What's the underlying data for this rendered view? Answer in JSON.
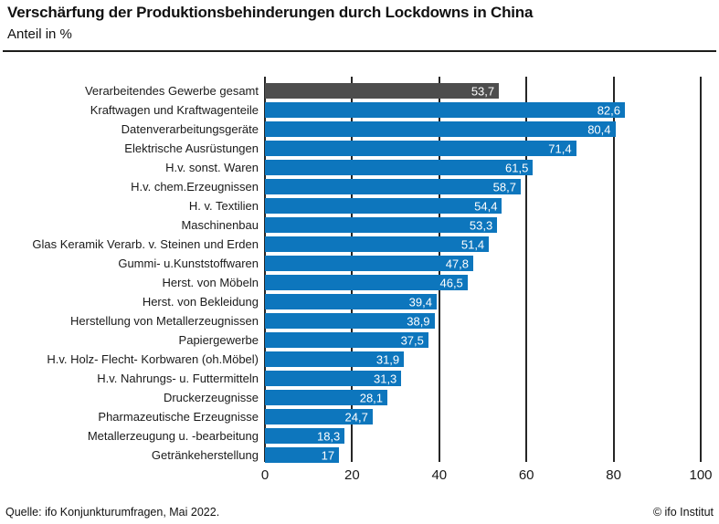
{
  "header": {
    "title": "Verschärfung der Produktionsbehinderungen durch Lockdowns in China",
    "subtitle": "Anteil in %"
  },
  "footer": {
    "source": "Quelle: ifo Konjunkturumfragen, Mai 2022.",
    "copyright": "© ifo Institut"
  },
  "colors": {
    "bar": "#0d76bd",
    "highlight_bar": "#4d4d4d",
    "gridline": "#262626",
    "value_text": "#ffffff"
  },
  "chart_data": {
    "type": "bar",
    "orientation": "horizontal",
    "title": "Verschärfung der Produktionsbehinderungen durch Lockdowns in China",
    "subtitle": "Anteil in %",
    "xlabel": "",
    "ylabel": "",
    "xlim": [
      0,
      100
    ],
    "xticks": [
      0,
      20,
      40,
      60,
      80,
      100
    ],
    "grid": "vertical",
    "legend": "none",
    "highlight_index": 0,
    "categories": [
      "Verarbeitendes Gewerbe gesamt",
      "Kraftwagen und Kraftwagenteile",
      "Datenverarbeitungsgeräte",
      "Elektrische Ausrüstungen",
      "H.v. sonst. Waren",
      "H.v. chem.Erzeugnissen",
      "H. v. Textilien",
      "Maschinenbau",
      "Glas  Keramik  Verarb. v. Steinen und Erden",
      "Gummi- u.Kunststoffwaren",
      "Herst. von Möbeln",
      "Herst. von Bekleidung",
      "Herstellung von Metallerzeugnissen",
      "Papiergewerbe",
      "H.v. Holz-  Flecht-  Korbwaren (oh.Möbel)",
      "H.v. Nahrungs- u. Futtermitteln",
      "Druckerzeugnisse",
      "Pharmazeutische Erzeugnisse",
      "Metallerzeugung u. -bearbeitung",
      "Getränkeherstellung"
    ],
    "values": [
      53.7,
      82.6,
      80.4,
      71.4,
      61.5,
      58.7,
      54.4,
      53.3,
      51.4,
      47.8,
      46.5,
      39.4,
      38.9,
      37.5,
      31.9,
      31.3,
      28.1,
      24.7,
      18.3,
      17
    ],
    "value_labels": [
      "53,7",
      "82,6",
      "80,4",
      "71,4",
      "61,5",
      "58,7",
      "54,4",
      "53,3",
      "51,4",
      "47,8",
      "46,5",
      "39,4",
      "38,9",
      "37,5",
      "31,9",
      "31,3",
      "28,1",
      "24,7",
      "18,3",
      "17"
    ]
  }
}
